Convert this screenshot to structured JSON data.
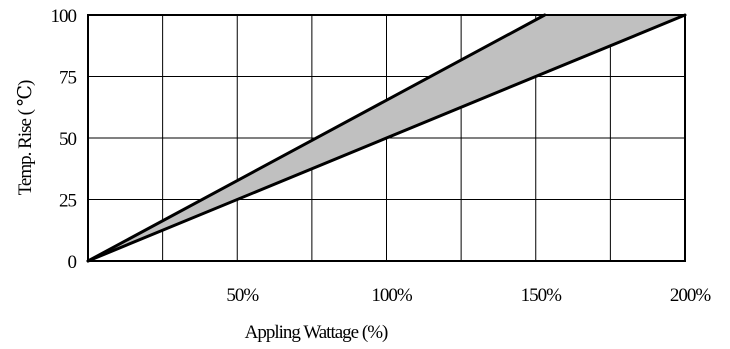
{
  "chart_data": {
    "type": "area",
    "xlabel": "Appling Wattage (%)",
    "ylabel": "Temp. Rise ( ℃)",
    "xlim": [
      0,
      200
    ],
    "ylim": [
      0,
      100
    ],
    "x_ticks": [
      {
        "value": 50,
        "label": "50%"
      },
      {
        "value": 100,
        "label": "100%"
      },
      {
        "value": 150,
        "label": "150%"
      },
      {
        "value": 200,
        "label": "200%"
      }
    ],
    "y_ticks": [
      {
        "value": 0,
        "label": "0"
      },
      {
        "value": 25,
        "label": "25"
      },
      {
        "value": 50,
        "label": "50"
      },
      {
        "value": 75,
        "label": "75"
      },
      {
        "value": 100,
        "label": "100"
      }
    ],
    "grid": true,
    "grid_x_step": 25,
    "grid_y_step": 25,
    "band_fill": "#c0c0c0",
    "series": [
      {
        "values": [
          [
            0,
            0
          ],
          [
            153,
            100
          ]
        ]
      },
      {
        "values": [
          [
            0,
            0
          ],
          [
            200,
            100
          ]
        ]
      }
    ]
  }
}
